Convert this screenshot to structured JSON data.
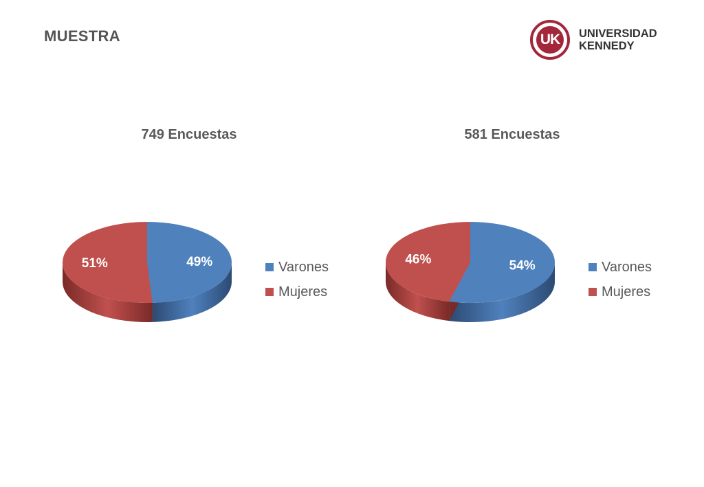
{
  "page": {
    "title": "MUESTRA"
  },
  "logo": {
    "mark": "UK",
    "line1": "UNIVERSIDAD",
    "line2": "KENNEDY",
    "color": "#a3263a"
  },
  "colors": {
    "varones": "#4f81bd",
    "mujeres": "#c0504d"
  },
  "chart_data": [
    {
      "type": "pie",
      "title": "749 Encuestas",
      "categories": [
        "Varones",
        "Mujeres"
      ],
      "values": [
        49,
        51
      ],
      "labels": [
        "49%",
        "51%"
      ],
      "legend": "right",
      "style": "3d"
    },
    {
      "type": "pie",
      "title": "581 Encuestas",
      "categories": [
        "Varones",
        "Mujeres"
      ],
      "values": [
        54,
        46
      ],
      "labels": [
        "54%",
        "46%"
      ],
      "legend": "right",
      "style": "3d"
    }
  ]
}
